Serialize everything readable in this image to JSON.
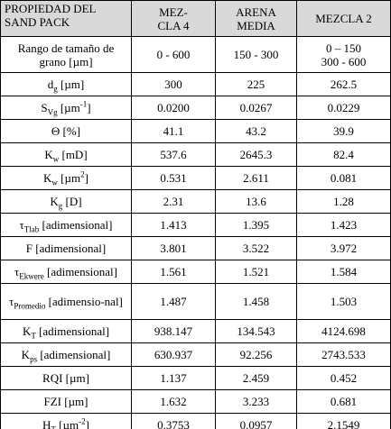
{
  "table": {
    "header": [
      [
        "PROPIEDAD DEL",
        "SAND PACK"
      ],
      [
        "MEZ-",
        "CLA 4"
      ],
      [
        "ARENA",
        "MEDIA"
      ],
      [
        "MEZCLA 2"
      ]
    ],
    "rows": [
      [
        [
          {
            "text": "Rango de tamaño de grano [µm]"
          }
        ],
        "0 - 600",
        "150 - 300",
        [
          "0 – 150",
          "300 - 600"
        ]
      ],
      [
        [
          {
            "text": "d"
          },
          {
            "sub": "g"
          },
          {
            "text": " [µm]"
          }
        ],
        "300",
        "225",
        "262.5"
      ],
      [
        [
          {
            "text": "S"
          },
          {
            "sub": "Vg"
          },
          {
            "text": " [µm"
          },
          {
            "sup": "-1"
          },
          {
            "text": "]"
          }
        ],
        "0.0200",
        "0.0267",
        "0.0229"
      ],
      [
        [
          {
            "text": "Θ [%]"
          }
        ],
        "41.1",
        "43.2",
        "39.9"
      ],
      [
        [
          {
            "text": "K"
          },
          {
            "sub": "w"
          },
          {
            "text": " [mD]"
          }
        ],
        "537.6",
        "2645.3",
        "82.4"
      ],
      [
        [
          {
            "text": "K"
          },
          {
            "sub": "w"
          },
          {
            "text": " [µm"
          },
          {
            "sup": "2"
          },
          {
            "text": "]"
          }
        ],
        "0.531",
        "2.611",
        "0.081"
      ],
      [
        [
          {
            "text": "K"
          },
          {
            "sub": "g"
          },
          {
            "text": " [D]"
          }
        ],
        "2.31",
        "13.6",
        "1.28"
      ],
      [
        [
          {
            "text": "τ"
          },
          {
            "sub": "Tlab"
          },
          {
            "text": " [adimensional]"
          }
        ],
        "1.413",
        "1.395",
        "1.423"
      ],
      [
        [
          {
            "text": "F [adimensional]"
          }
        ],
        "3.801",
        "3.522",
        "3.972"
      ],
      [
        [
          {
            "text": "τ"
          },
          {
            "sub": "Ekwere"
          },
          {
            "text": " [adimensional]"
          }
        ],
        "1.561",
        "1.521",
        "1.584"
      ],
      [
        [
          {
            "text": "τ"
          },
          {
            "sub": "Promedio"
          },
          {
            "text": " [adimensio-nal]"
          }
        ],
        "1.487",
        "1.458",
        "1.503"
      ],
      [
        [
          {
            "text": "K"
          },
          {
            "sub": "T"
          },
          {
            "text": " [adimensional]"
          }
        ],
        "938.147",
        "134.543",
        "4124.698"
      ],
      [
        [
          {
            "text": "K"
          },
          {
            "sub": "ps"
          },
          {
            "text": " [adimensional]"
          }
        ],
        "630.937",
        "92.256",
        "2743.533"
      ],
      [
        [
          {
            "text": "RQI [µm]"
          }
        ],
        "1.137",
        "2.459",
        "0.452"
      ],
      [
        [
          {
            "text": "FZI [µm]"
          }
        ],
        "1.632",
        "3.233",
        "0.681"
      ],
      [
        [
          {
            "text": "H"
          },
          {
            "sub": "T"
          },
          {
            "text": " [µm"
          },
          {
            "sup": "-2"
          },
          {
            "text": "]"
          }
        ],
        "0.3753",
        "0.0957",
        "2.1549"
      ]
    ]
  }
}
